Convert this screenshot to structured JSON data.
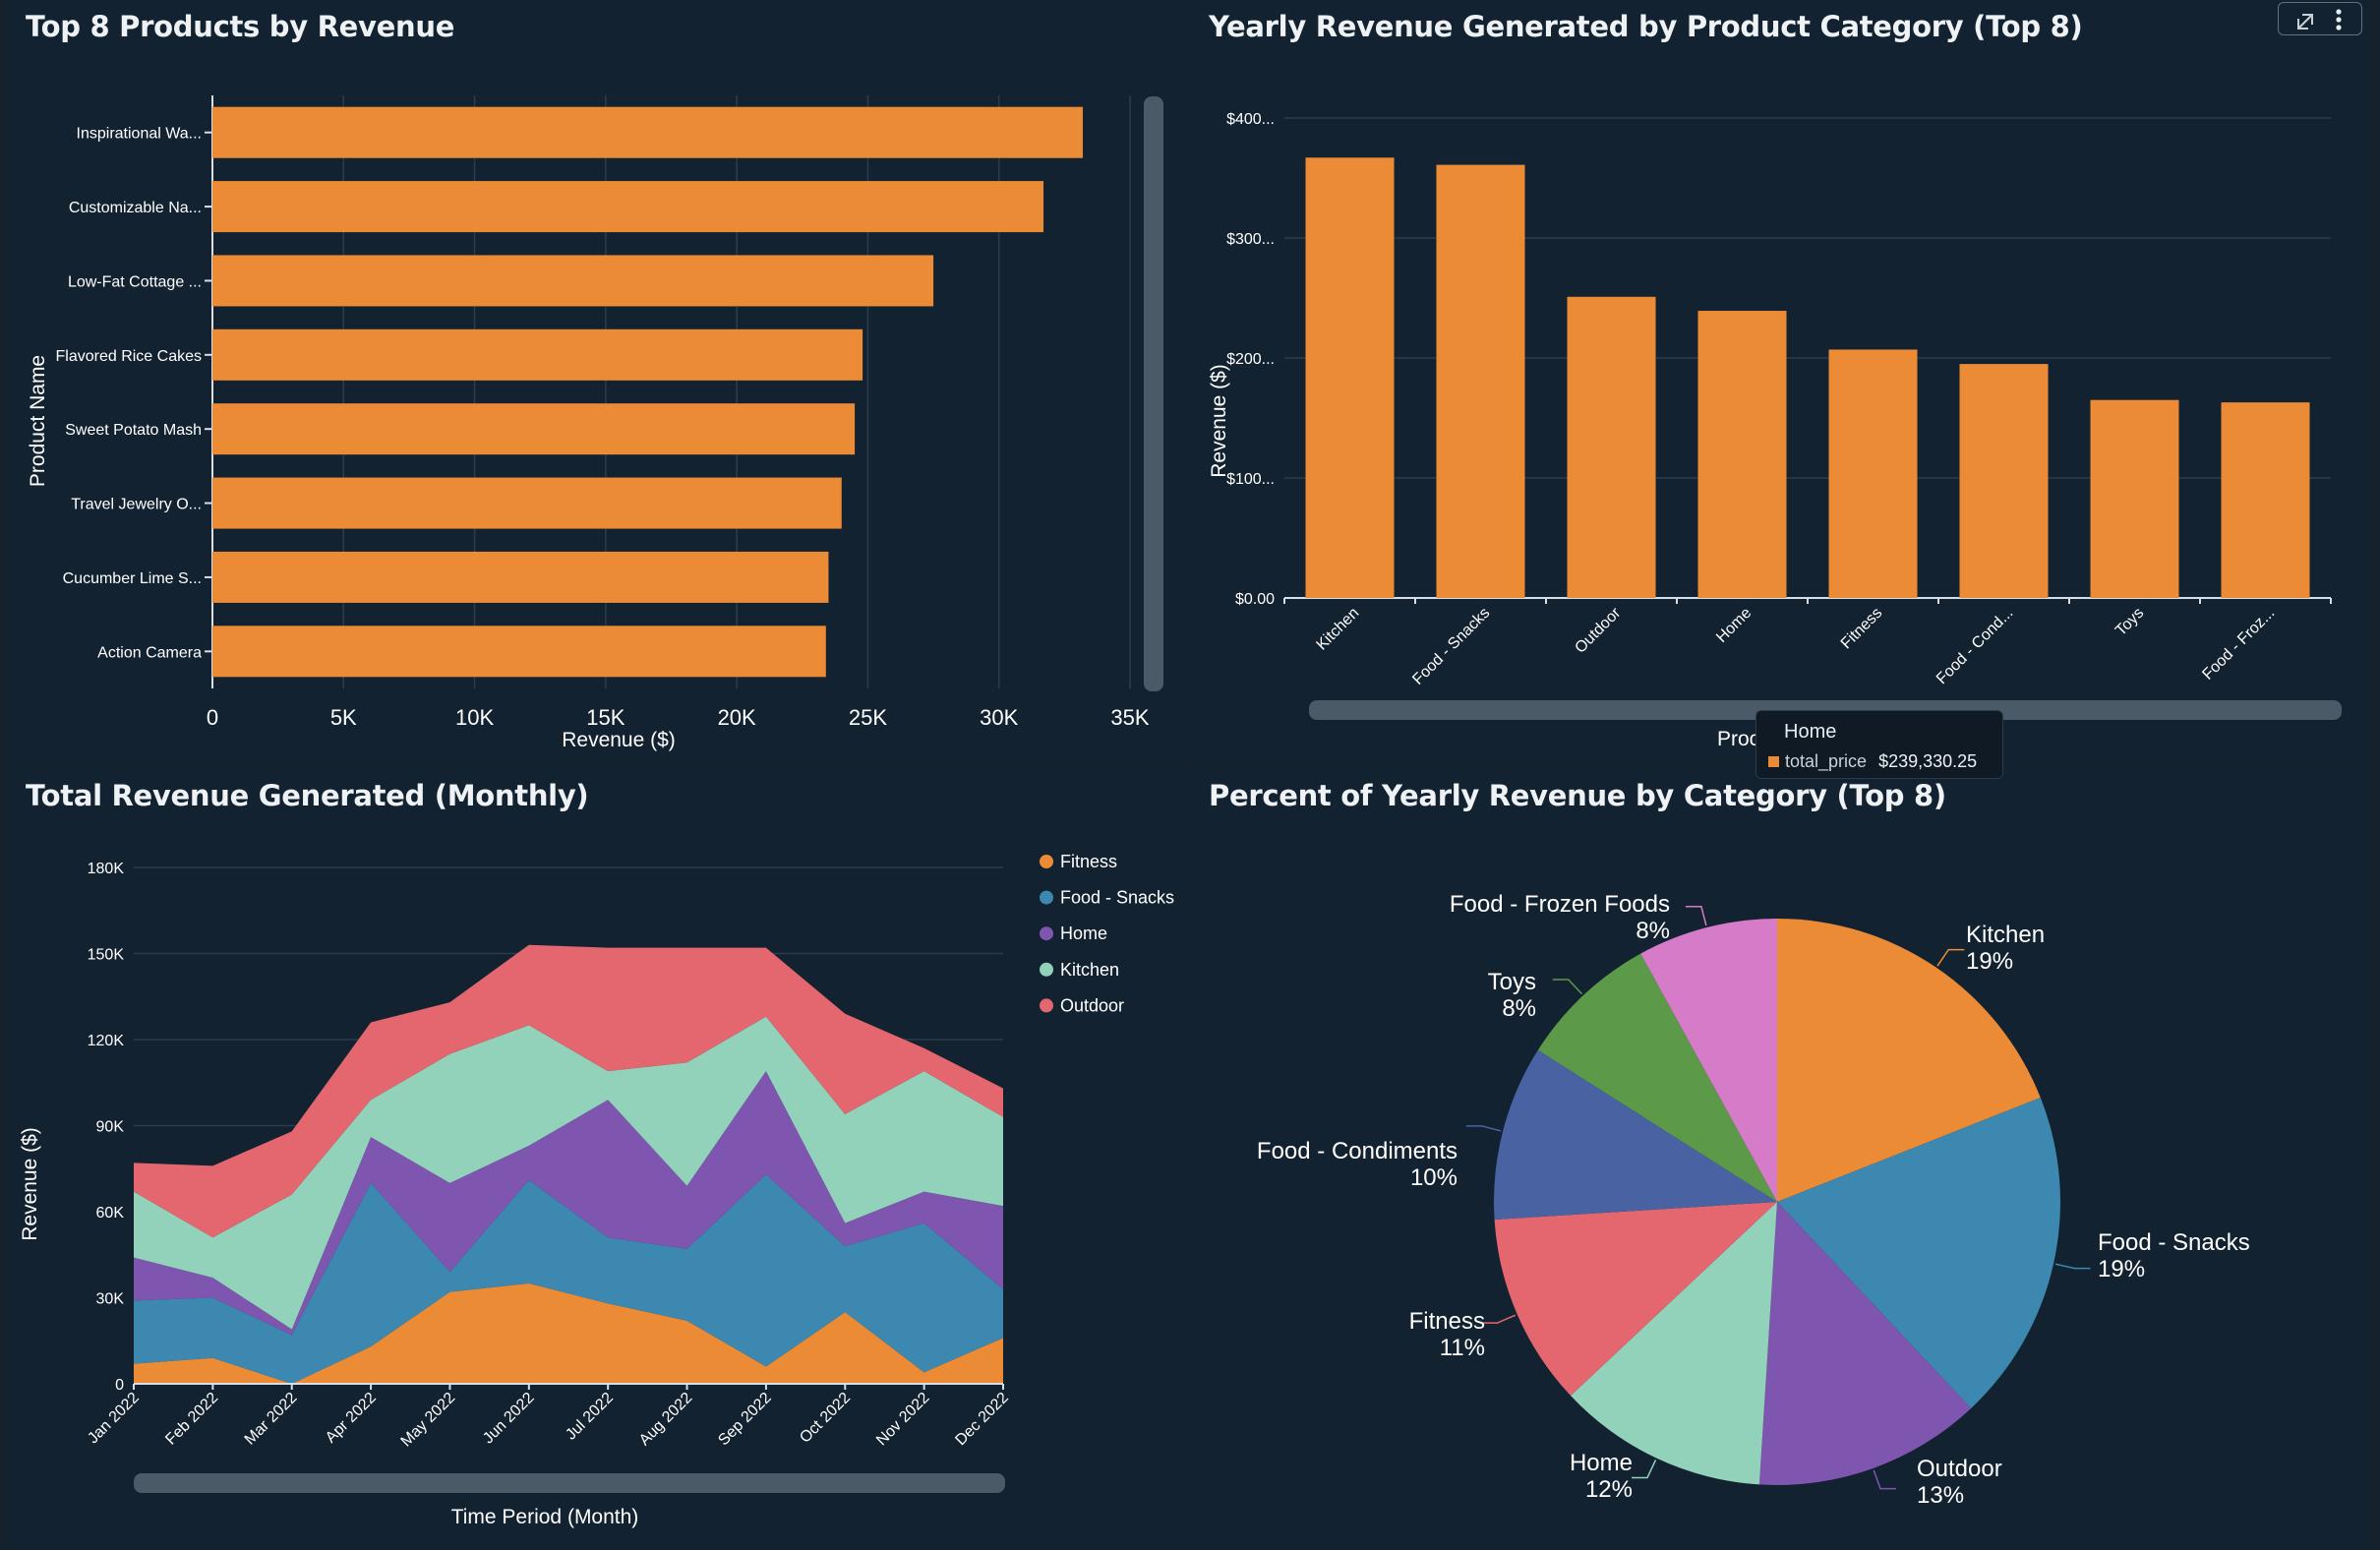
{
  "panels": {
    "top_products": {
      "title": "Top 8 Products by Revenue"
    },
    "yearly_category": {
      "title": "Yearly Revenue Generated by Product Category (Top 8)"
    },
    "monthly_total": {
      "title": "Total Revenue Generated (Monthly)"
    },
    "percent_category": {
      "title": "Percent of Yearly Revenue by Category (Top 8)"
    }
  },
  "tooltip": {
    "title": "Home",
    "series": "total_price",
    "value": "$239,330.25"
  },
  "colors": {
    "accent": "#ec8b36",
    "background": "#132230"
  },
  "icons": {
    "expand": "expand-icon",
    "more": "more-vertical-icon"
  },
  "chart_data": [
    {
      "type": "bar",
      "orientation": "horizontal",
      "title": "Top 8 Products by Revenue",
      "categories": [
        "Inspirational Wa...",
        "Customizable Na...",
        "Low-Fat Cottage ...",
        "Flavored Rice Cakes",
        "Sweet Potato Mash",
        "Travel Jewelry O...",
        "Cucumber Lime S...",
        "Action Camera"
      ],
      "values": [
        33200,
        31700,
        27500,
        24800,
        24500,
        24000,
        23500,
        23400
      ],
      "xlabel": "Revenue ($)",
      "ylabel": "Product Name",
      "xlim": [
        0,
        35000
      ],
      "ticks": [
        0,
        5000,
        10000,
        15000,
        20000,
        25000,
        30000,
        35000
      ],
      "tick_labels": [
        "0",
        "5K",
        "10K",
        "15K",
        "20K",
        "25K",
        "30K",
        "35K"
      ],
      "color": "#ec8b36"
    },
    {
      "type": "bar",
      "title": "Yearly Revenue Generated by Product Category (Top 8)",
      "categories": [
        "Kitchen",
        "Food - Snacks",
        "Outdoor",
        "Home",
        "Fitness",
        "Food - Cond...",
        "Toys",
        "Food - Froz..."
      ],
      "values": [
        367000,
        361000,
        251000,
        239330.25,
        207000,
        195000,
        165000,
        163000
      ],
      "ylabel": "Revenue ($)",
      "xlabel": "Proc",
      "ylim": [
        0,
        400000
      ],
      "ticks": [
        0,
        100000,
        200000,
        300000,
        400000
      ],
      "tick_labels": [
        "$0.00",
        "$100...",
        "$200...",
        "$300...",
        "$400..."
      ],
      "color": "#ec8b36"
    },
    {
      "type": "area",
      "stacked": true,
      "title": "Total Revenue Generated (Monthly)",
      "categories": [
        "Jan 2022",
        "Feb 2022",
        "Mar 2022",
        "Apr 2022",
        "May 2022",
        "Jun 2022",
        "Jul 2022",
        "Aug 2022",
        "Sep 2022",
        "Oct 2022",
        "Nov 2022",
        "Dec 2022"
      ],
      "series": [
        {
          "name": "Fitness",
          "color": "#ec8b36",
          "values": [
            7000,
            9000,
            0,
            13000,
            32000,
            35000,
            28000,
            22000,
            6000,
            25000,
            4000,
            16000
          ]
        },
        {
          "name": "Food - Snacks",
          "color": "#3c88b0",
          "values": [
            22000,
            21000,
            17000,
            57000,
            7000,
            36000,
            23000,
            25000,
            67000,
            23000,
            52000,
            17000
          ]
        },
        {
          "name": "Home",
          "color": "#7e56b0",
          "values": [
            15000,
            7000,
            2000,
            16000,
            31000,
            12000,
            48000,
            22000,
            36000,
            8000,
            11000,
            29000
          ]
        },
        {
          "name": "Kitchen",
          "color": "#92d2bb",
          "values": [
            23000,
            14000,
            47000,
            13000,
            45000,
            42000,
            10000,
            43000,
            19000,
            38000,
            42000,
            31000
          ]
        },
        {
          "name": "Outdoor",
          "color": "#e4666e",
          "values": [
            10000,
            25000,
            22000,
            27000,
            18000,
            28000,
            43000,
            40000,
            24000,
            35000,
            8000,
            10000
          ]
        }
      ],
      "ylabel": "Revenue ($)",
      "xlabel": "Time Period (Month)",
      "ylim": [
        0,
        180000
      ],
      "ticks": [
        0,
        30000,
        60000,
        90000,
        120000,
        150000,
        180000
      ],
      "tick_labels": [
        "0",
        "30K",
        "60K",
        "90K",
        "120K",
        "150K",
        "180K"
      ],
      "legend": "top-right"
    },
    {
      "type": "pie",
      "title": "Percent of Yearly Revenue by Category (Top 8)",
      "slices": [
        {
          "label": "Kitchen",
          "percent": "19%",
          "value": 19,
          "color": "#ec8b36"
        },
        {
          "label": "Food - Snacks",
          "percent": "19%",
          "value": 19,
          "color": "#3c88b0"
        },
        {
          "label": "Outdoor",
          "percent": "13%",
          "value": 13,
          "color": "#7e56b0"
        },
        {
          "label": "Home",
          "percent": "12%",
          "value": 12,
          "color": "#92d2bb"
        },
        {
          "label": "Fitness",
          "percent": "11%",
          "value": 11,
          "color": "#e4666e"
        },
        {
          "label": "Food - Condiments",
          "percent": "10%",
          "value": 10,
          "color": "#4962a2"
        },
        {
          "label": "Toys",
          "percent": "8%",
          "value": 8,
          "color": "#5c9a4a"
        },
        {
          "label": "Food - Frozen Foods",
          "percent": "8%",
          "value": 8,
          "color": "#d57bc7"
        }
      ]
    }
  ]
}
